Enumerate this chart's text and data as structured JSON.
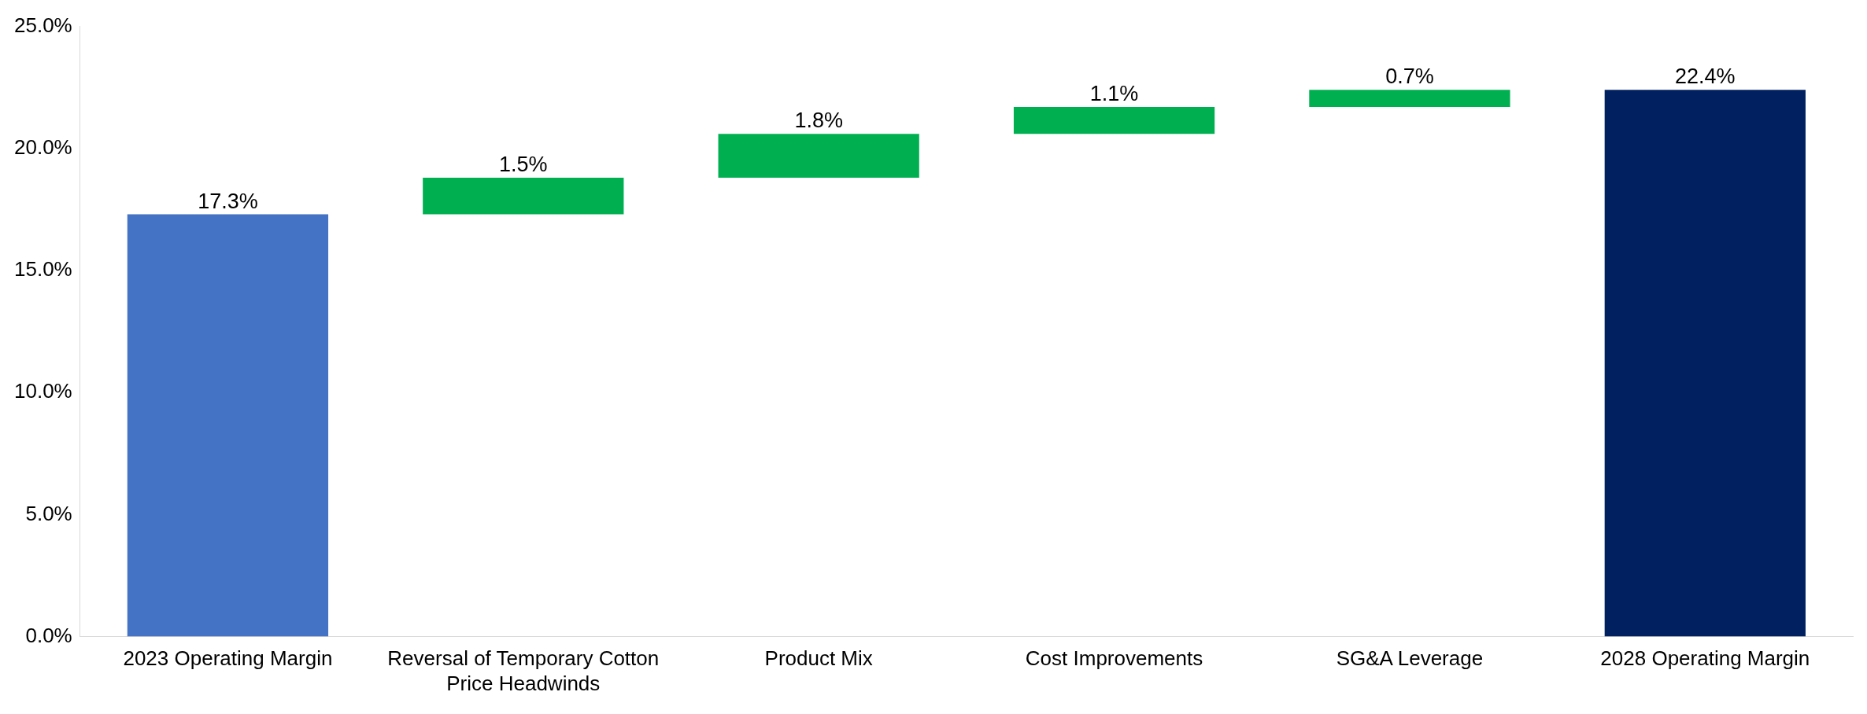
{
  "chart_data": {
    "type": "bar",
    "categories": [
      "2023 Operating Margin",
      "Reversal of Temporary Cotton Price Headwinds",
      "Product Mix",
      "Cost Improvements",
      "SG&A Leverage",
      "2028 Operating Margin"
    ],
    "values": [
      17.3,
      1.5,
      1.8,
      1.1,
      0.7,
      22.4
    ],
    "base": [
      0,
      17.3,
      18.8,
      20.6,
      21.7,
      0
    ],
    "colors": [
      "#4472c4",
      "#00b050",
      "#00b050",
      "#00b050",
      "#00b050",
      "#002060"
    ],
    "value_labels": [
      "17.3%",
      "1.5%",
      "1.8%",
      "1.1%",
      "0.7%",
      "22.4%"
    ],
    "ylim": [
      0,
      25
    ],
    "yticks": [
      {
        "value": 0,
        "label": "0.0%"
      },
      {
        "value": 5,
        "label": "5.0%"
      },
      {
        "value": 10,
        "label": "10.0%"
      },
      {
        "value": 15,
        "label": "15.0%"
      },
      {
        "value": 20,
        "label": "20.0%"
      },
      {
        "value": 25,
        "label": "25.0%"
      }
    ],
    "grid": false,
    "legend": false
  }
}
